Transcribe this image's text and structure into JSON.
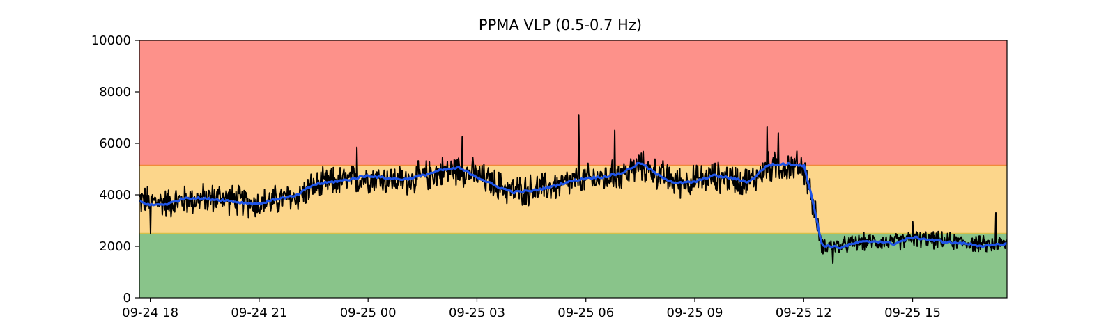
{
  "chart_data": {
    "type": "line",
    "title": "PPMA VLP (0.5-0.7 Hz)",
    "xlabel": "",
    "ylabel": "",
    "x_tick_labels": [
      "09-24 18",
      "09-24 21",
      "09-25 00",
      "09-25 03",
      "09-25 06",
      "09-25 09",
      "09-25 12",
      "09-25 15"
    ],
    "x_tick_hours": [
      0,
      3,
      6,
      9,
      12,
      15,
      18,
      21
    ],
    "xlim_hours": [
      -0.3,
      23.6
    ],
    "y_tick_labels": [
      "0",
      "2000",
      "4000",
      "6000",
      "8000",
      "10000"
    ],
    "y_ticks": [
      0,
      2000,
      4000,
      6000,
      8000,
      10000
    ],
    "ylim": [
      0,
      10000
    ],
    "grid": false,
    "threshold_bands": [
      {
        "from": 0,
        "to": 2500,
        "color": "#89c48a"
      },
      {
        "from": 2500,
        "to": 5150,
        "color": "#fcd68b"
      },
      {
        "from": 5150,
        "to": 10000,
        "color": "#fd918a"
      }
    ],
    "threshold_lines": [
      {
        "value": 2500,
        "color": "#d6c04a"
      },
      {
        "value": 5150,
        "color": "#f08a3a"
      }
    ],
    "series": [
      {
        "style": "raw",
        "color": "#000000",
        "x_hours": [
          -0.3,
          0.0,
          0.5,
          1.0,
          1.5,
          2.0,
          2.5,
          3.0,
          3.5,
          4.0,
          4.5,
          5.0,
          5.5,
          6.0,
          6.5,
          7.0,
          7.5,
          8.0,
          8.5,
          9.0,
          9.5,
          10.0,
          10.5,
          11.0,
          11.5,
          12.0,
          12.5,
          13.0,
          13.5,
          14.0,
          14.5,
          15.0,
          15.5,
          16.0,
          16.5,
          17.0,
          17.5,
          18.0,
          18.2,
          18.5,
          19.0,
          19.5,
          20.0,
          20.5,
          21.0,
          21.5,
          22.0,
          22.5,
          23.0,
          23.6
        ],
        "values": [
          3800,
          3750,
          3700,
          3800,
          3850,
          3900,
          3750,
          3650,
          3800,
          3900,
          4300,
          4500,
          4550,
          4700,
          4600,
          4550,
          4700,
          4900,
          5000,
          4750,
          4400,
          4150,
          4200,
          4300,
          4450,
          4600,
          4650,
          4800,
          5100,
          4800,
          4500,
          4550,
          4700,
          4650,
          4500,
          5050,
          5100,
          5100,
          4000,
          2050,
          2000,
          2150,
          2200,
          2150,
          2300,
          2250,
          2200,
          2150,
          2050,
          2100
        ],
        "noise_amplitude": 650,
        "peaks": [
          {
            "x_hours": 0.0,
            "value": 2500
          },
          {
            "x_hours": 5.7,
            "value": 5850
          },
          {
            "x_hours": 8.6,
            "value": 6250
          },
          {
            "x_hours": 11.8,
            "value": 7100
          },
          {
            "x_hours": 12.8,
            "value": 6500
          },
          {
            "x_hours": 17.0,
            "value": 6650
          },
          {
            "x_hours": 17.3,
            "value": 6400
          },
          {
            "x_hours": 18.8,
            "value": 1350
          },
          {
            "x_hours": 23.3,
            "value": 3300
          },
          {
            "x_hours": 21.0,
            "value": 2950
          }
        ]
      },
      {
        "style": "smoothed",
        "color": "#1f54e6",
        "x_hours": [
          -0.3,
          0.0,
          0.5,
          1.0,
          1.5,
          2.0,
          2.5,
          3.0,
          3.5,
          4.0,
          4.5,
          5.0,
          5.5,
          6.0,
          6.5,
          7.0,
          7.5,
          8.0,
          8.5,
          9.0,
          9.5,
          10.0,
          10.5,
          11.0,
          11.5,
          12.0,
          12.5,
          13.0,
          13.5,
          14.0,
          14.5,
          15.0,
          15.5,
          16.0,
          16.5,
          17.0,
          17.5,
          18.0,
          18.2,
          18.5,
          19.0,
          19.5,
          20.0,
          20.5,
          21.0,
          21.5,
          22.0,
          22.5,
          23.0,
          23.6
        ],
        "values": [
          3750,
          3600,
          3650,
          3900,
          3850,
          3800,
          3700,
          3650,
          3850,
          3950,
          4400,
          4500,
          4600,
          4750,
          4650,
          4600,
          4750,
          4950,
          5050,
          4700,
          4350,
          4100,
          4150,
          4300,
          4500,
          4650,
          4700,
          4850,
          5250,
          4750,
          4450,
          4500,
          4750,
          4650,
          4500,
          5150,
          5200,
          5150,
          4100,
          2050,
          1950,
          2150,
          2200,
          2100,
          2350,
          2250,
          2150,
          2100,
          2000,
          2100
        ]
      }
    ]
  }
}
